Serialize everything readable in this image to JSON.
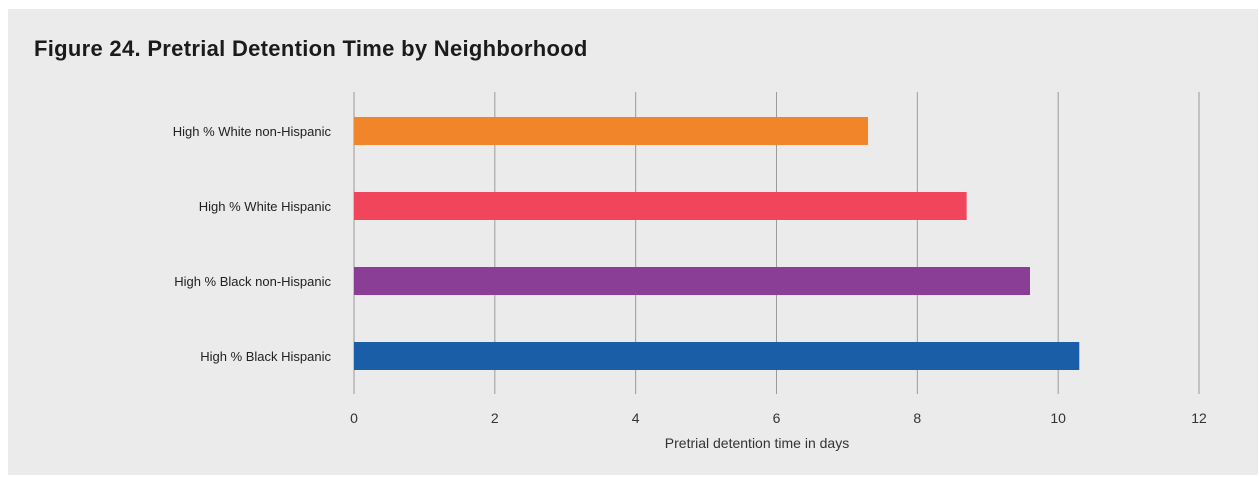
{
  "chart_data": {
    "type": "bar",
    "orientation": "horizontal",
    "title": "Figure 24. Pretrial Detention Time by Neighborhood",
    "categories": [
      "High % White non-Hispanic",
      "High % White Hispanic",
      "High % Black non-Hispanic",
      "High % Black Hispanic"
    ],
    "values": [
      7.3,
      8.7,
      9.6,
      10.3
    ],
    "colors": [
      "#f0852a",
      "#f0455a",
      "#8b3e96",
      "#1b5ea8"
    ],
    "xlabel": "Pretrial detention time in days",
    "ylabel": "",
    "xlim": [
      0,
      12
    ],
    "xticks": [
      0,
      2,
      4,
      6,
      8,
      10,
      12
    ],
    "grid": "vertical"
  }
}
